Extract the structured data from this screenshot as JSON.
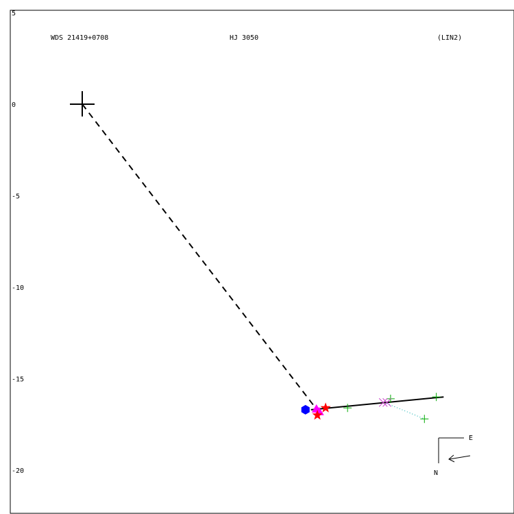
{
  "header": {
    "left": "WDS 21419+0708",
    "center": "HJ 3050",
    "right": "(LIN2)"
  },
  "compass": {
    "east": "E",
    "north": "N"
  },
  "chart_data": {
    "type": "scatter",
    "title": "",
    "xlabel": "",
    "ylabel": "",
    "ylim": [
      -22.5,
      5
    ],
    "xlim": [
      -4,
      23.5
    ],
    "y_tick_labels": [
      "5",
      "0",
      "-5",
      "-10",
      "-15",
      "-20"
    ],
    "y_ticks": [
      5,
      0,
      -5,
      -10,
      -15,
      -20
    ],
    "grid": false,
    "primary": {
      "x": 0,
      "y": 0
    },
    "dashed_line": {
      "from": [
        0,
        0
      ],
      "to": [
        12.75,
        -16.6
      ]
    },
    "orbit_fit_line": [
      [
        12.5,
        -16.7
      ],
      [
        19.75,
        -16.0
      ]
    ],
    "dotted_residual": [
      [
        16.5,
        -16.3
      ],
      [
        18.7,
        -17.2
      ]
    ],
    "green_plus": [
      [
        14.5,
        -16.6
      ],
      [
        16.85,
        -16.1
      ],
      [
        19.35,
        -16.0
      ],
      [
        18.7,
        -17.2
      ]
    ],
    "blue_hexagon": [
      [
        12.2,
        -16.7
      ]
    ],
    "magenta_triangles": [
      [
        12.8,
        -16.7
      ],
      [
        12.95,
        -16.85
      ]
    ],
    "red_stars": [
      [
        12.85,
        -17.0
      ],
      [
        13.3,
        -16.6
      ]
    ],
    "magenta_crosses": [
      [
        16.45,
        -16.3
      ],
      [
        16.65,
        -16.3
      ]
    ],
    "colors": {
      "axes": "#000000",
      "fit": "#000000",
      "plus": "#00aa00",
      "hexagon": "#0000ff",
      "triangle": "#ff00ff",
      "star": "#ff0000",
      "cross": "#cc44cc",
      "dotted": "#00aaaa"
    }
  }
}
